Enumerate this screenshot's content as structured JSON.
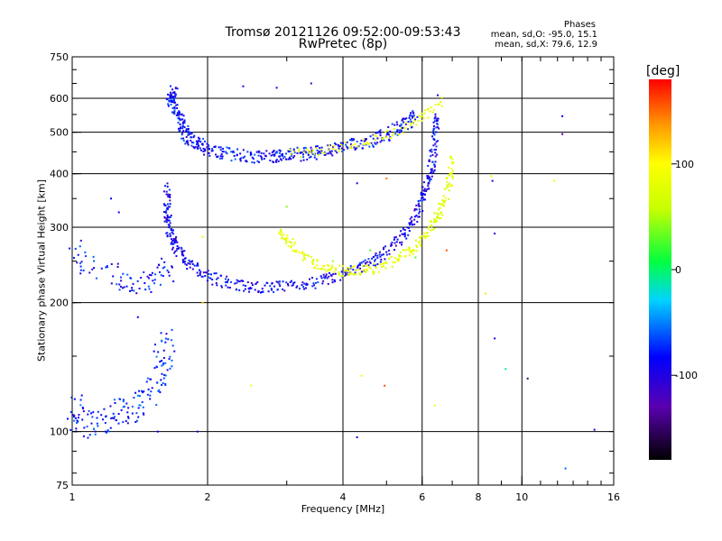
{
  "header": {
    "title_line1": "Tromsø 20121126 09:52:00-09:53:43",
    "title_line2": "RwPretec (8p)"
  },
  "phase_box": {
    "title": "Phases",
    "o_line": "mean, sd,O: -95.0, 15.1",
    "x_line": "mean, sd,X:  79.6, 12.9"
  },
  "chart_data": {
    "type": "scatter",
    "title": "Tromsø 20121126 09:52:00-09:53:43",
    "subtitle": "RwPretec (8p)",
    "xlabel": "Frequency [MHz]",
    "ylabel": "Stationary phase Virtual Height [km]",
    "x_scale": "log",
    "y_scale": "log",
    "xlim": [
      1,
      16
    ],
    "ylim": [
      75,
      750
    ],
    "x_ticks": [
      1,
      2,
      4,
      6,
      8,
      10,
      16
    ],
    "x_tick_labels": [
      "1",
      "2",
      "4",
      "6",
      "8",
      "10",
      "16"
    ],
    "x_grid": [
      2,
      4,
      6,
      8,
      10
    ],
    "y_ticks": [
      75,
      100,
      200,
      300,
      400,
      500,
      600,
      750
    ],
    "y_tick_labels": [
      "75",
      "100",
      "200",
      "300",
      "400",
      "500",
      "600",
      "750"
    ],
    "y_grid": [
      100,
      200,
      300,
      400,
      500,
      600
    ],
    "grid": true,
    "colorbar": {
      "label": "[deg]",
      "range": [
        -180,
        180
      ],
      "ticks": [
        100,
        0,
        -100
      ],
      "tick_labels": [
        "100",
        "0",
        "-100"
      ]
    },
    "series": [
      {
        "name": "O",
        "phase_mean": -95.0,
        "phase_sd": 15.1
      },
      {
        "name": "X",
        "phase_mean": 79.6,
        "phase_sd": 12.9
      }
    ],
    "traces": [
      {
        "points": [
          [
            1.68,
            625
          ],
          [
            1.65,
            600
          ],
          [
            1.7,
            570
          ],
          [
            1.75,
            520
          ],
          [
            1.8,
            490
          ],
          [
            1.9,
            470
          ],
          [
            2.0,
            455
          ],
          [
            2.2,
            445
          ],
          [
            2.5,
            440
          ],
          [
            2.8,
            440
          ],
          [
            3.0,
            442
          ],
          [
            3.3,
            445
          ],
          [
            3.6,
            450
          ],
          [
            4.0,
            460
          ],
          [
            4.5,
            475
          ],
          [
            5.0,
            495
          ],
          [
            5.5,
            520
          ],
          [
            5.8,
            545
          ]
        ],
        "phase": -100,
        "spread": 0.12,
        "density": 7
      },
      {
        "points": [
          [
            3.1,
            445
          ],
          [
            3.5,
            450
          ],
          [
            4.0,
            462
          ],
          [
            4.6,
            478
          ],
          [
            5.2,
            500
          ],
          [
            5.8,
            530
          ],
          [
            6.2,
            555
          ],
          [
            6.7,
            600
          ]
        ],
        "phase": 85,
        "spread": 0.08,
        "density": 3
      },
      {
        "points": [
          [
            1.62,
            370
          ],
          [
            1.63,
            320
          ],
          [
            1.65,
            290
          ],
          [
            1.7,
            270
          ],
          [
            1.8,
            250
          ],
          [
            2.0,
            230
          ],
          [
            2.3,
            220
          ],
          [
            2.6,
            217
          ],
          [
            3.0,
            218
          ],
          [
            3.5,
            223
          ],
          [
            4.0,
            232
          ],
          [
            4.5,
            245
          ],
          [
            5.0,
            262
          ],
          [
            5.5,
            290
          ],
          [
            5.9,
            330
          ],
          [
            6.1,
            370
          ],
          [
            6.3,
            410
          ],
          [
            6.4,
            480
          ],
          [
            6.5,
            560
          ]
        ],
        "phase": -105,
        "spread": 0.1,
        "density": 7
      },
      {
        "points": [
          [
            2.9,
            290
          ],
          [
            3.1,
            270
          ],
          [
            3.4,
            250
          ],
          [
            3.8,
            238
          ],
          [
            4.2,
            236
          ],
          [
            4.7,
            240
          ],
          [
            5.3,
            252
          ],
          [
            5.8,
            272
          ],
          [
            6.3,
            300
          ],
          [
            6.6,
            330
          ],
          [
            6.9,
            380
          ],
          [
            7.0,
            440
          ]
        ],
        "phase": 75,
        "spread": 0.09,
        "density": 6
      },
      {
        "points": [
          [
            1.02,
            265
          ],
          [
            1.05,
            250
          ],
          [
            1.2,
            235
          ],
          [
            1.3,
            228
          ],
          [
            1.4,
            222
          ],
          [
            1.5,
            225
          ],
          [
            1.6,
            232
          ],
          [
            1.65,
            240
          ]
        ],
        "phase": -100,
        "spread": 0.22,
        "density": 3
      },
      {
        "points": [
          [
            1.0,
            115
          ],
          [
            1.05,
            105
          ],
          [
            1.15,
            104
          ],
          [
            1.25,
            110
          ],
          [
            1.35,
            112
          ],
          [
            1.45,
            120
          ],
          [
            1.55,
            135
          ],
          [
            1.6,
            150
          ],
          [
            1.65,
            165
          ]
        ],
        "phase": -95,
        "spread": 0.25,
        "density": 5
      }
    ],
    "scatter_points": [
      {
        "x": 1.22,
        "y": 350,
        "phase": -100
      },
      {
        "x": 1.27,
        "y": 325,
        "phase": -100
      },
      {
        "x": 1.4,
        "y": 185,
        "phase": -100
      },
      {
        "x": 1.8,
        "y": 240,
        "phase": -100
      },
      {
        "x": 2.4,
        "y": 640,
        "phase": -110
      },
      {
        "x": 2.85,
        "y": 635,
        "phase": -110
      },
      {
        "x": 3.4,
        "y": 650,
        "phase": -120
      },
      {
        "x": 6.5,
        "y": 610,
        "phase": -100
      },
      {
        "x": 5.0,
        "y": 390,
        "phase": 150
      },
      {
        "x": 4.3,
        "y": 380,
        "phase": -110
      },
      {
        "x": 3.0,
        "y": 335,
        "phase": 30
      },
      {
        "x": 4.6,
        "y": 265,
        "phase": 20
      },
      {
        "x": 5.8,
        "y": 255,
        "phase": 15
      },
      {
        "x": 6.8,
        "y": 265,
        "phase": 160
      },
      {
        "x": 8.3,
        "y": 210,
        "phase": 110
      },
      {
        "x": 8.55,
        "y": 395,
        "phase": 70
      },
      {
        "x": 8.6,
        "y": 385,
        "phase": -110
      },
      {
        "x": 8.7,
        "y": 290,
        "phase": -110
      },
      {
        "x": 8.7,
        "y": 165,
        "phase": -110
      },
      {
        "x": 9.2,
        "y": 140,
        "phase": -30
      },
      {
        "x": 10.3,
        "y": 133,
        "phase": -150
      },
      {
        "x": 11.8,
        "y": 385,
        "phase": 90
      },
      {
        "x": 12.3,
        "y": 545,
        "phase": -100
      },
      {
        "x": 12.3,
        "y": 495,
        "phase": -130
      },
      {
        "x": 12.5,
        "y": 82,
        "phase": -80
      },
      {
        "x": 14.5,
        "y": 101,
        "phase": -110
      },
      {
        "x": 4.3,
        "y": 97,
        "phase": -110
      },
      {
        "x": 4.4,
        "y": 135,
        "phase": 80
      },
      {
        "x": 4.95,
        "y": 128,
        "phase": 160
      },
      {
        "x": 6.4,
        "y": 115,
        "phase": 90
      },
      {
        "x": 2.5,
        "y": 128,
        "phase": 90
      },
      {
        "x": 1.95,
        "y": 200,
        "phase": 120
      },
      {
        "x": 1.95,
        "y": 285,
        "phase": 80
      },
      {
        "x": 3.8,
        "y": 250,
        "phase": 40
      },
      {
        "x": 3.05,
        "y": 455,
        "phase": 60
      },
      {
        "x": 3.3,
        "y": 460,
        "phase": -80
      },
      {
        "x": 1.55,
        "y": 100,
        "phase": -100
      },
      {
        "x": 1.9,
        "y": 100,
        "phase": -100
      }
    ]
  }
}
